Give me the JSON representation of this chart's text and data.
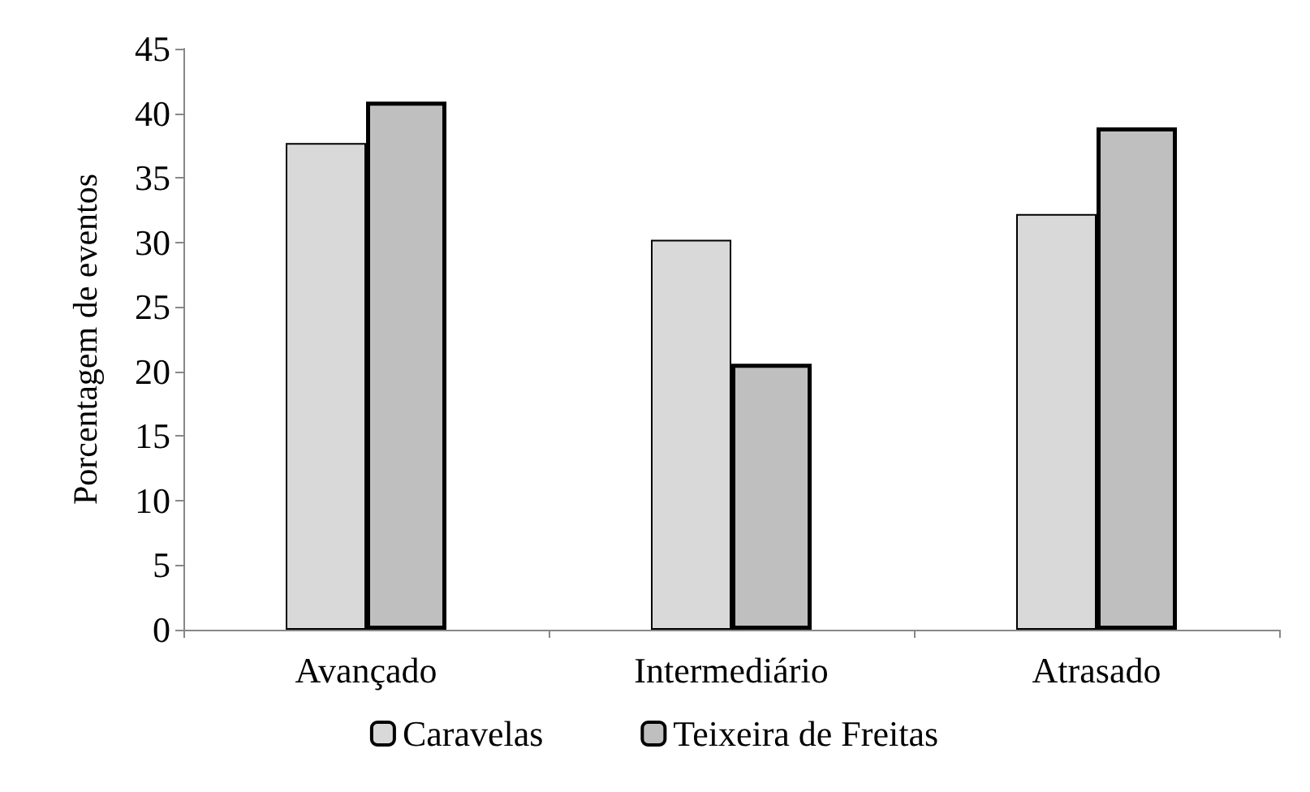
{
  "chart_data": {
    "type": "bar",
    "ylabel": "Porcentagem de eventos",
    "categories": [
      "Avançado",
      "Intermediário",
      "Atrasado"
    ],
    "series": [
      {
        "name": "Caravelas",
        "color": "#d9d9d9",
        "values": [
          37.7,
          30.2,
          32.2
        ]
      },
      {
        "name": "Teixeira de Freitas",
        "color": "#bfbfbf",
        "values": [
          40.9,
          20.6,
          38.9
        ]
      }
    ],
    "ylim": [
      0,
      45
    ],
    "yticks": [
      0,
      5,
      10,
      15,
      20,
      25,
      30,
      35,
      40,
      45
    ],
    "grid": false,
    "legend": "bottom"
  }
}
